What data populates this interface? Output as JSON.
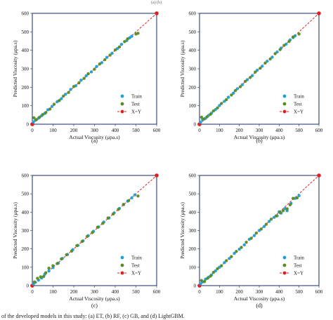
{
  "header_fragment": "(a) (b)",
  "caption_fragment": "of the developed models in this study: (a) ET, (b) RF, (c) GB, and (d) LightGBM.",
  "colors": {
    "train": "#1e9fd6",
    "test": "#5a8a1e",
    "xy": "#e02020",
    "frame": "#1a2a6a"
  },
  "chart_data": [
    {
      "type": "scatter",
      "panel_label": "(a)",
      "xlabel": "Actual Viscosity (μpa.s)",
      "ylabel": "Predicted Viscosity (μpa.s)",
      "xlim": [
        0,
        600
      ],
      "ylim": [
        0,
        600
      ],
      "xticks": [
        0,
        100,
        200,
        300,
        400,
        500,
        600
      ],
      "yticks": [
        0,
        100,
        200,
        300,
        400,
        500,
        600
      ],
      "legend": {
        "placement": "bottom-right",
        "entries": [
          "Train",
          "Test",
          "X=Y"
        ]
      },
      "series": [
        {
          "name": "Train",
          "x": [
            5,
            15,
            30,
            45,
            60,
            75,
            95,
            120,
            140,
            160,
            185,
            210,
            235,
            260,
            285,
            310,
            335,
            360,
            385,
            410,
            430,
            455,
            470,
            480
          ],
          "y": [
            12,
            22,
            33,
            46,
            58,
            78,
            96,
            122,
            138,
            162,
            188,
            208,
            238,
            262,
            283,
            312,
            333,
            362,
            384,
            409,
            432,
            452,
            468,
            476
          ]
        },
        {
          "name": "Test",
          "x": [
            8,
            20,
            35,
            50,
            65,
            85,
            105,
            130,
            150,
            175,
            200,
            225,
            250,
            270,
            300,
            325,
            350,
            375,
            400,
            420,
            445,
            460,
            500,
            510
          ],
          "y": [
            35,
            25,
            38,
            52,
            63,
            82,
            108,
            128,
            152,
            172,
            204,
            224,
            248,
            273,
            298,
            326,
            349,
            374,
            402,
            418,
            447,
            462,
            488,
            492
          ]
        },
        {
          "name": "X=Y",
          "x": [
            0,
            600
          ],
          "y": [
            0,
            600
          ]
        }
      ]
    },
    {
      "type": "scatter",
      "panel_label": "(b)",
      "xlabel": "Actual Viscosity (μpa.s)",
      "ylabel": "Predicted Viscosity (μpa.s)",
      "xlim": [
        0,
        600
      ],
      "ylim": [
        0,
        600
      ],
      "xticks": [
        0,
        100,
        200,
        300,
        400,
        500,
        600
      ],
      "yticks": [
        0,
        100,
        200,
        300,
        400,
        500,
        600
      ],
      "legend": {
        "placement": "bottom-right",
        "entries": [
          "Train",
          "Test",
          "X=Y"
        ]
      },
      "series": [
        {
          "name": "Train",
          "x": [
            5,
            15,
            30,
            45,
            60,
            80,
            100,
            125,
            145,
            170,
            190,
            215,
            240,
            265,
            290,
            315,
            340,
            365,
            390,
            410,
            435,
            455,
            470,
            480
          ],
          "y": [
            10,
            24,
            32,
            47,
            60,
            79,
            101,
            124,
            146,
            168,
            192,
            214,
            241,
            263,
            292,
            314,
            341,
            363,
            391,
            412,
            433,
            456,
            469,
            478
          ]
        },
        {
          "name": "Test",
          "x": [
            10,
            22,
            38,
            55,
            70,
            90,
            110,
            135,
            160,
            180,
            205,
            230,
            255,
            280,
            305,
            330,
            355,
            380,
            405,
            425,
            450,
            470,
            500
          ],
          "y": [
            38,
            28,
            40,
            54,
            72,
            88,
            112,
            133,
            158,
            182,
            203,
            232,
            253,
            282,
            303,
            331,
            353,
            382,
            404,
            427,
            448,
            472,
            488
          ]
        },
        {
          "name": "X=Y",
          "x": [
            0,
            600
          ],
          "y": [
            0,
            600
          ]
        }
      ]
    },
    {
      "type": "scatter",
      "panel_label": "(c)",
      "xlabel": "Actual Viscosity (μpa.s)",
      "ylabel": "Predicted Viscosity (μpa.s)",
      "xlim": [
        0,
        600
      ],
      "ylim": [
        0,
        600
      ],
      "xticks": [
        0,
        100,
        200,
        300,
        400,
        500,
        600
      ],
      "yticks": [
        0,
        100,
        200,
        300,
        400,
        500,
        600
      ],
      "legend": {
        "placement": "bottom-right",
        "entries": [
          "Train",
          "Test",
          "X=Y"
        ]
      },
      "series": [
        {
          "name": "Train",
          "x": [
            5,
            15,
            30,
            45,
            60,
            80,
            100,
            125,
            145,
            170,
            195,
            220,
            245,
            270,
            295,
            320,
            345,
            370,
            395,
            420,
            440,
            460,
            480,
            495
          ],
          "y": [
            8,
            18,
            30,
            42,
            62,
            80,
            98,
            122,
            148,
            170,
            196,
            219,
            244,
            272,
            296,
            320,
            346,
            368,
            396,
            420,
            441,
            460,
            478,
            494
          ]
        },
        {
          "name": "Test",
          "x": [
            10,
            25,
            40,
            55,
            65,
            80,
            100,
            120,
            140,
            165,
            190,
            215,
            240,
            265,
            290,
            315,
            340,
            365,
            390,
            415,
            440,
            465,
            510
          ],
          "y": [
            20,
            40,
            48,
            50,
            70,
            95,
            108,
            120,
            145,
            168,
            188,
            218,
            240,
            268,
            289,
            318,
            339,
            368,
            390,
            415,
            442,
            463,
            488
          ]
        },
        {
          "name": "X=Y",
          "x": [
            0,
            600
          ],
          "y": [
            0,
            600
          ]
        }
      ]
    },
    {
      "type": "scatter",
      "panel_label": "(d)",
      "xlabel": "Actual Viscosity (μpa.s)",
      "ylabel": "Predicted Viscosity (μpa.s)",
      "xlim": [
        0,
        600
      ],
      "ylim": [
        0,
        600
      ],
      "xticks": [
        0,
        100,
        200,
        300,
        400,
        500,
        600
      ],
      "yticks": [
        0,
        100,
        200,
        300,
        400,
        500,
        600
      ],
      "legend": {
        "placement": "bottom-right",
        "entries": [
          "Train",
          "Test",
          "X=Y"
        ]
      },
      "series": [
        {
          "name": "Train",
          "x": [
            5,
            15,
            30,
            45,
            60,
            80,
            100,
            125,
            150,
            175,
            200,
            225,
            250,
            275,
            300,
            325,
            350,
            375,
            390,
            400,
            410,
            430,
            440,
            460,
            480,
            500
          ],
          "y": [
            10,
            20,
            35,
            45,
            58,
            80,
            100,
            125,
            148,
            176,
            198,
            222,
            252,
            272,
            300,
            322,
            350,
            372,
            380,
            402,
            395,
            420,
            408,
            448,
            475,
            490
          ]
        },
        {
          "name": "Test",
          "x": [
            10,
            25,
            40,
            55,
            70,
            90,
            110,
            135,
            160,
            185,
            210,
            235,
            260,
            285,
            310,
            335,
            360,
            385,
            405,
            420,
            440,
            455,
            470,
            490
          ],
          "y": [
            28,
            22,
            40,
            52,
            72,
            92,
            108,
            136,
            158,
            186,
            208,
            236,
            258,
            286,
            308,
            334,
            362,
            380,
            398,
            408,
            418,
            440,
            475,
            478
          ]
        },
        {
          "name": "X=Y",
          "x": [
            0,
            600
          ],
          "y": [
            0,
            600
          ]
        }
      ]
    }
  ]
}
